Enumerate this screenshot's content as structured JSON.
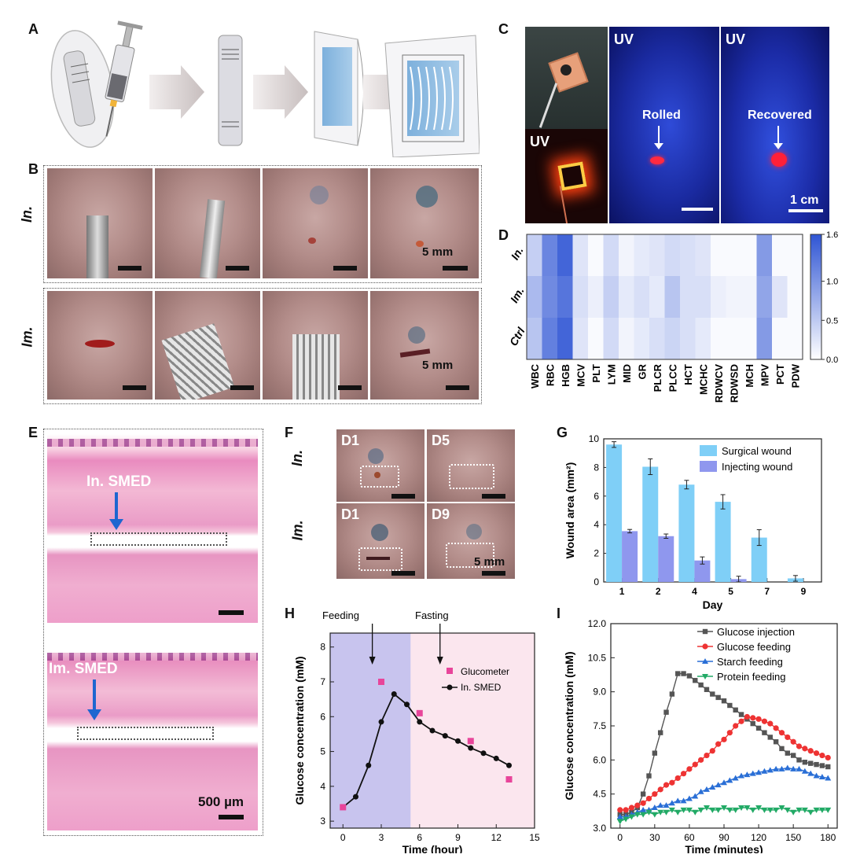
{
  "panels": {
    "A": "A",
    "B": "B",
    "C": "C",
    "D": "D",
    "E": "E",
    "F": "F",
    "G": "G",
    "H": "H",
    "I": "I"
  },
  "panel_b": {
    "row_in": "In.",
    "row_im": "Im.",
    "scale_in": "5 mm",
    "scale_im": "5 mm"
  },
  "panel_c": {
    "uv1": "UV",
    "uv2": "UV",
    "uv3": "UV",
    "rolled": "Rolled",
    "recovered": "Recovered",
    "scale": "1 cm"
  },
  "panel_e": {
    "top_label": "In. SMED",
    "bottom_label": "Im. SMED",
    "scale": "500 µm"
  },
  "panel_f": {
    "row_in": "In.",
    "row_im": "Im.",
    "d1a": "D1",
    "d5": "D5",
    "d1b": "D1",
    "d9": "D9",
    "scale": "5 mm"
  },
  "colors": {
    "heat_low": "#ffffff",
    "heat_high": "#2f55d4",
    "surgical": "#7fcff7",
    "injecting": "#8f97ee",
    "feed_bg": "#c8c4ee",
    "fast_bg": "#fbe6ee",
    "glucometer": "#e8459a",
    "inj": "#555555",
    "gfeed": "#ee3333",
    "sfeed": "#2a6fd6",
    "pfeed": "#22aa66"
  },
  "chart_data": [
    {
      "id": "D",
      "type": "heatmap",
      "rows": [
        "In.",
        "Im.",
        "Ctrl"
      ],
      "columns": [
        "WBC",
        "RBC",
        "HGB",
        "MCV",
        "PLT",
        "LYM",
        "MID",
        "GR",
        "PLCR",
        "PLCC",
        "HCT",
        "MCHC",
        "RDWCV",
        "RDWSD",
        "MCH",
        "MPV",
        "PCT",
        "PDW"
      ],
      "values": [
        [
          0.45,
          1.15,
          1.45,
          0.25,
          0.05,
          0.35,
          0.1,
          0.2,
          0.25,
          0.35,
          0.3,
          0.25,
          0.05,
          0.05,
          0.05,
          0.95,
          0.05,
          0.05
        ],
        [
          0.65,
          1.1,
          1.3,
          0.3,
          0.15,
          0.45,
          0.2,
          0.3,
          0.2,
          0.55,
          0.3,
          0.3,
          0.15,
          0.1,
          0.1,
          0.85,
          0.25,
          0.05
        ],
        [
          0.55,
          1.2,
          1.45,
          0.25,
          0.05,
          0.35,
          0.1,
          0.2,
          0.3,
          0.4,
          0.3,
          0.2,
          0.05,
          0.05,
          0.05,
          0.95,
          0.05,
          0.05
        ]
      ],
      "colorbar_ticks": [
        "1.6",
        "1.0",
        "0.5",
        "0.0"
      ],
      "range": [
        0,
        1.6
      ]
    },
    {
      "id": "G",
      "type": "bar",
      "categories": [
        "1",
        "2",
        "4",
        "5",
        "7",
        "9"
      ],
      "series": [
        {
          "name": "Surgical wound",
          "values": [
            9.6,
            8.05,
            6.8,
            5.6,
            3.1,
            0.25
          ],
          "errors": [
            0.2,
            0.55,
            0.3,
            0.5,
            0.55,
            0.2
          ]
        },
        {
          "name": "Injecting wound",
          "values": [
            3.55,
            3.2,
            1.5,
            0.2,
            0,
            0
          ],
          "errors": [
            0.12,
            0.15,
            0.25,
            0.2,
            0,
            0
          ]
        }
      ],
      "xlabel": "Day",
      "ylabel": "Wound area (mm²)",
      "ylim": [
        0,
        10
      ],
      "yticks": [
        "0",
        "2",
        "4",
        "6",
        "8",
        "10"
      ]
    },
    {
      "id": "H",
      "type": "line",
      "annotations": {
        "feeding": "Feeding",
        "fasting": "Fasting"
      },
      "series": [
        {
          "name": "Glucometer",
          "type": "scatter",
          "x": [
            0,
            3,
            6,
            10,
            13
          ],
          "y": [
            3.4,
            7.0,
            6.1,
            5.3,
            4.2
          ]
        },
        {
          "name": "In. SMED",
          "type": "line",
          "x": [
            0,
            1,
            2,
            3,
            4,
            5,
            6,
            7,
            8,
            9,
            10,
            11,
            12,
            13
          ],
          "y": [
            3.4,
            3.7,
            4.6,
            5.85,
            6.65,
            6.35,
            5.85,
            5.6,
            5.45,
            5.3,
            5.1,
            4.95,
            4.8,
            4.6
          ]
        }
      ],
      "xlabel": "Time (hour)",
      "ylabel": "Glucose concentration (mM)",
      "xlim": [
        -1,
        15
      ],
      "ylim": [
        2.8,
        8.4
      ],
      "xticks": [
        "0",
        "3",
        "6",
        "9",
        "12",
        "15"
      ],
      "yticks": [
        "3",
        "4",
        "5",
        "6",
        "7",
        "8"
      ]
    },
    {
      "id": "I",
      "type": "line",
      "series": [
        {
          "name": "Glucose injection",
          "x": [
            0,
            5,
            10,
            15,
            20,
            25,
            30,
            35,
            40,
            45,
            50,
            55,
            60,
            65,
            70,
            75,
            80,
            85,
            90,
            95,
            100,
            105,
            110,
            115,
            120,
            125,
            130,
            135,
            140,
            145,
            150,
            155,
            160,
            165,
            170,
            175,
            180
          ],
          "y": [
            3.6,
            3.6,
            3.7,
            3.9,
            4.5,
            5.3,
            6.3,
            7.2,
            8.1,
            8.9,
            9.8,
            9.8,
            9.7,
            9.5,
            9.3,
            9.1,
            8.9,
            8.75,
            8.6,
            8.4,
            8.2,
            8.0,
            7.8,
            7.6,
            7.4,
            7.2,
            7.0,
            6.8,
            6.5,
            6.3,
            6.2,
            6.0,
            5.9,
            5.85,
            5.8,
            5.75,
            5.7
          ]
        },
        {
          "name": "Glucose feeding",
          "x": [
            0,
            5,
            10,
            15,
            20,
            25,
            30,
            35,
            40,
            45,
            50,
            55,
            60,
            65,
            70,
            75,
            80,
            85,
            90,
            95,
            100,
            105,
            110,
            115,
            120,
            125,
            130,
            135,
            140,
            145,
            150,
            155,
            160,
            165,
            170,
            175,
            180
          ],
          "y": [
            3.8,
            3.8,
            3.9,
            4.0,
            4.1,
            4.3,
            4.5,
            4.7,
            4.9,
            5.0,
            5.2,
            5.4,
            5.6,
            5.8,
            6.0,
            6.2,
            6.4,
            6.7,
            6.9,
            7.2,
            7.5,
            7.7,
            7.9,
            7.85,
            7.8,
            7.7,
            7.6,
            7.4,
            7.2,
            7.0,
            6.8,
            6.6,
            6.5,
            6.4,
            6.3,
            6.2,
            6.1
          ]
        },
        {
          "name": "Starch feeding",
          "x": [
            0,
            5,
            10,
            15,
            20,
            25,
            30,
            35,
            40,
            45,
            50,
            55,
            60,
            65,
            70,
            75,
            80,
            85,
            90,
            95,
            100,
            105,
            110,
            115,
            120,
            125,
            130,
            135,
            140,
            145,
            150,
            155,
            160,
            165,
            170,
            175,
            180
          ],
          "y": [
            3.5,
            3.5,
            3.6,
            3.7,
            3.8,
            3.8,
            3.9,
            4.0,
            4.0,
            4.1,
            4.2,
            4.2,
            4.3,
            4.4,
            4.6,
            4.7,
            4.8,
            4.9,
            5.0,
            5.1,
            5.2,
            5.3,
            5.35,
            5.4,
            5.45,
            5.5,
            5.55,
            5.6,
            5.6,
            5.65,
            5.6,
            5.6,
            5.5,
            5.4,
            5.3,
            5.25,
            5.2
          ]
        },
        {
          "name": "Protein feeding",
          "x": [
            0,
            5,
            10,
            15,
            20,
            25,
            30,
            35,
            40,
            45,
            50,
            55,
            60,
            65,
            70,
            75,
            80,
            85,
            90,
            95,
            100,
            105,
            110,
            115,
            120,
            125,
            130,
            135,
            140,
            145,
            150,
            155,
            160,
            165,
            170,
            175,
            180
          ],
          "y": [
            3.3,
            3.4,
            3.5,
            3.6,
            3.6,
            3.7,
            3.6,
            3.7,
            3.7,
            3.8,
            3.7,
            3.8,
            3.8,
            3.7,
            3.8,
            3.9,
            3.8,
            3.8,
            3.9,
            3.8,
            3.8,
            3.9,
            3.9,
            3.8,
            3.9,
            3.8,
            3.8,
            3.8,
            3.9,
            3.8,
            3.7,
            3.8,
            3.8,
            3.7,
            3.8,
            3.8,
            3.8
          ]
        }
      ],
      "xlabel": "Time (minutes)",
      "ylabel": "Glucose concentration (mM)",
      "xlim": [
        -8,
        188
      ],
      "ylim": [
        3.0,
        12.0
      ],
      "xticks": [
        "0",
        "30",
        "60",
        "90",
        "120",
        "150",
        "180"
      ],
      "yticks": [
        "3.0",
        "4.5",
        "6.0",
        "7.5",
        "9.0",
        "10.5",
        "12.0"
      ]
    }
  ]
}
